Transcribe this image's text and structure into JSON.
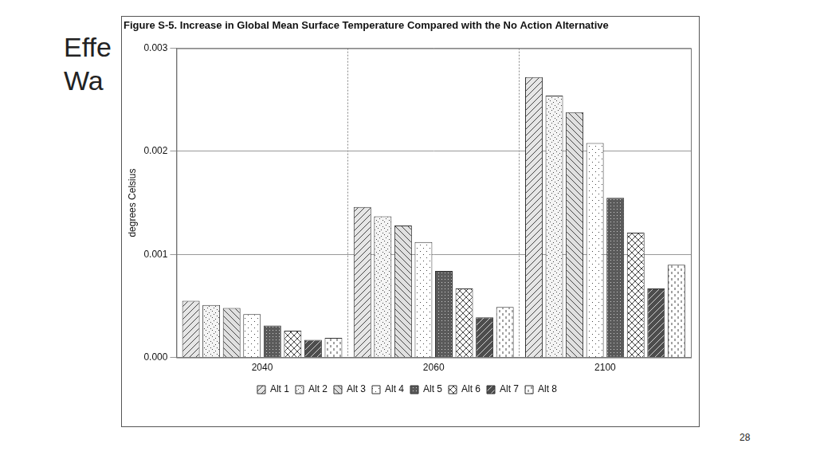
{
  "slide": {
    "title": [
      "Effe",
      "Wa"
    ],
    "page_number": 28
  },
  "chart_data": {
    "type": "bar",
    "title": "Figure S-5. Increase in Global Mean Surface Temperature Compared with the No Action Alternative",
    "y_label": "degrees Celsius",
    "categories": [
      "2040",
      "2060",
      "2100"
    ],
    "series": [
      {
        "name": "Alt 1",
        "color": "#e6e6e6",
        "values": [
          0.00055,
          0.00146,
          0.00272
        ]
      },
      {
        "name": "Alt 2",
        "color": "#f4f4f4",
        "values": [
          0.00051,
          0.00137,
          0.00254
        ]
      },
      {
        "name": "Alt 3",
        "color": "#e0e0e0",
        "values": [
          0.00048,
          0.00128,
          0.00238
        ]
      },
      {
        "name": "Alt 4",
        "color": "#ffffff",
        "values": [
          0.00042,
          0.00112,
          0.00208
        ]
      },
      {
        "name": "Alt 5",
        "color": "#5a5a5a",
        "values": [
          0.00031,
          0.00084,
          0.00155
        ]
      },
      {
        "name": "Alt 6",
        "color": "#ffffff",
        "values": [
          0.00026,
          0.00067,
          0.00121
        ]
      },
      {
        "name": "Alt 7",
        "color": "#4d4d4d",
        "values": [
          0.00017,
          0.00039,
          0.00067
        ]
      },
      {
        "name": "Alt 8",
        "color": "#ffffff",
        "values": [
          0.00019,
          0.00049,
          0.0009
        ]
      }
    ],
    "ylim": [
      0,
      0.003
    ],
    "yticks": [
      {
        "value": 0,
        "label": "0.000"
      },
      0.001,
      0.002,
      0.003
    ],
    "grid": true,
    "legend": "bottom"
  }
}
